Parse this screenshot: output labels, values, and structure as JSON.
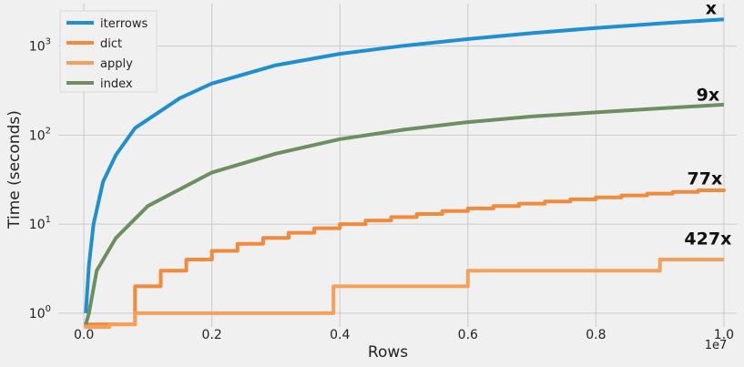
{
  "chart_data": {
    "type": "line",
    "title": "",
    "xlabel": "Rows",
    "ylabel": "Time (seconds)",
    "x_offset_label": "1e7",
    "xlim": [
      -0.04,
      1.02
    ],
    "ylim": [
      0.7,
      3000
    ],
    "yscale": "log",
    "grid": true,
    "legend_position": "top-left",
    "x_ticks": [
      {
        "value": 0.0,
        "label": "0.0"
      },
      {
        "value": 0.2,
        "label": "0.2"
      },
      {
        "value": 0.4,
        "label": "0.4"
      },
      {
        "value": 0.6,
        "label": "0.6"
      },
      {
        "value": 0.8,
        "label": "0.8"
      },
      {
        "value": 1.0,
        "label": "1.0"
      }
    ],
    "y_ticks": [
      {
        "value": 1,
        "base": "10",
        "exp": "0"
      },
      {
        "value": 10,
        "base": "10",
        "exp": "1"
      },
      {
        "value": 100,
        "base": "10",
        "exp": "2"
      },
      {
        "value": 1000,
        "base": "10",
        "exp": "3"
      }
    ],
    "series": [
      {
        "name": "iterrows",
        "color": "#1f8fd0",
        "x": [
          0.003,
          0.008,
          0.015,
          0.03,
          0.05,
          0.08,
          0.1,
          0.15,
          0.2,
          0.3,
          0.4,
          0.5,
          0.6,
          0.7,
          0.8,
          0.9,
          1.0
        ],
        "y": [
          1.0,
          3.5,
          10,
          30,
          60,
          120,
          150,
          260,
          380,
          610,
          820,
          1010,
          1200,
          1400,
          1600,
          1800,
          2000
        ]
      },
      {
        "name": "dict",
        "color": "#f08a3c",
        "step": true,
        "x": [
          0.0,
          0.08,
          0.12,
          0.16,
          0.2,
          0.24,
          0.28,
          0.32,
          0.36,
          0.4,
          0.44,
          0.48,
          0.52,
          0.56,
          0.6,
          0.64,
          0.68,
          0.72,
          0.76,
          0.8,
          0.84,
          0.88,
          0.92,
          0.96,
          1.0
        ],
        "y": [
          0.75,
          2,
          3,
          4,
          5,
          6,
          7,
          8,
          9,
          10,
          11,
          12,
          13,
          14,
          15,
          16,
          17,
          18,
          19,
          20,
          21,
          22,
          23,
          24,
          25
        ]
      },
      {
        "name": "apply",
        "color": "#f4a05a",
        "step": true,
        "x": [
          0.0,
          0.04,
          0.08,
          0.2,
          0.39,
          0.6,
          0.9,
          1.0
        ],
        "y": [
          0.7,
          0.75,
          1,
          1,
          2,
          3,
          4,
          4
        ]
      },
      {
        "name": "index",
        "color": "#6c8e60",
        "x": [
          0.003,
          0.008,
          0.02,
          0.05,
          0.1,
          0.2,
          0.3,
          0.4,
          0.5,
          0.6,
          0.7,
          0.8,
          0.9,
          1.0
        ],
        "y": [
          0.75,
          1,
          3,
          7,
          16,
          38,
          62,
          90,
          115,
          140,
          162,
          180,
          200,
          220
        ]
      }
    ],
    "annotations": [
      {
        "text": "x",
        "x": 0.98,
        "y": 2300
      },
      {
        "text": "9x",
        "x": 0.975,
        "y": 245
      },
      {
        "text": "77x",
        "x": 0.97,
        "y": 28
      },
      {
        "text": "427x",
        "x": 0.975,
        "y": 5.9
      }
    ]
  }
}
